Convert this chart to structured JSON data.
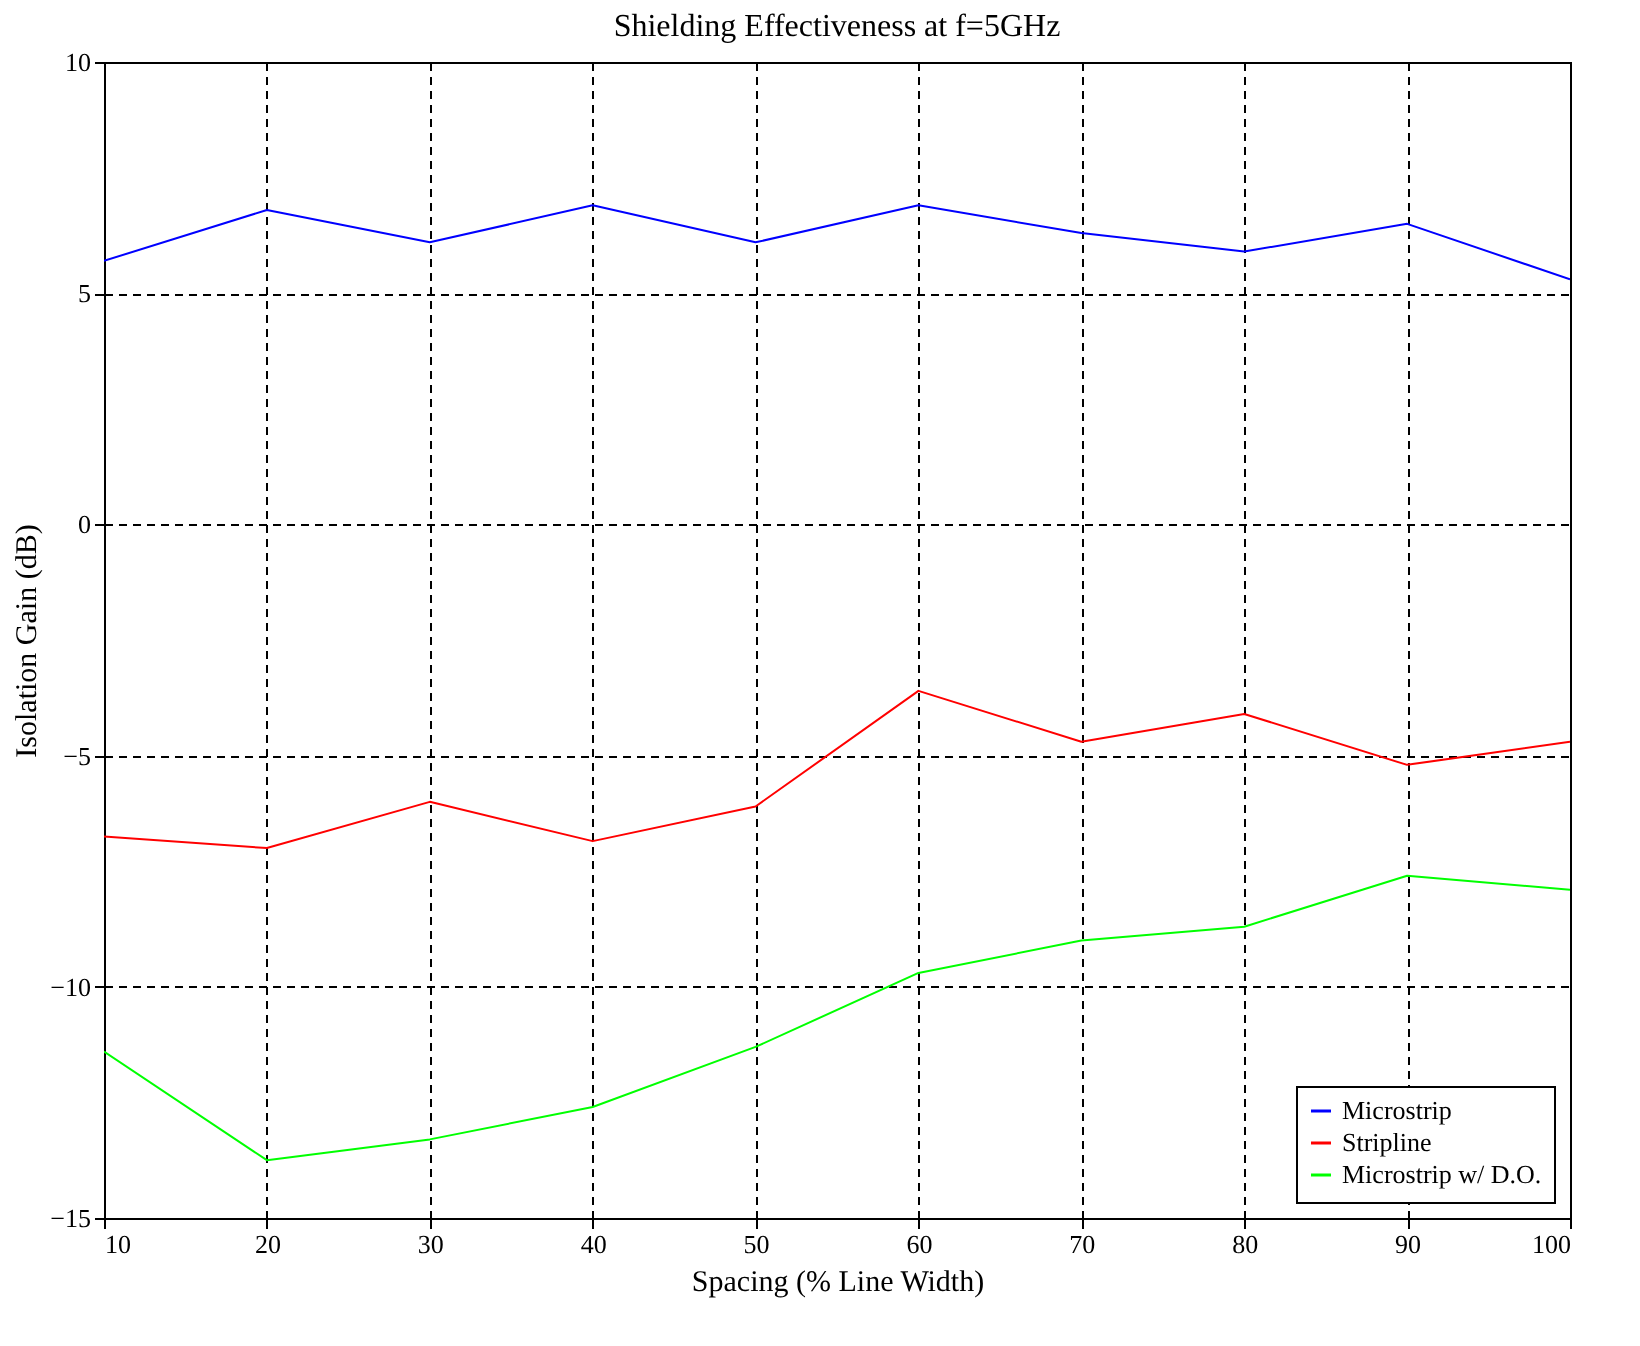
{
  "chart_data": {
    "type": "line",
    "title": "Shielding Effectiveness at f=5GHz",
    "xlabel": "Spacing (% Line Width)",
    "ylabel": "Isolation Gain (dB)",
    "x": [
      10,
      20,
      30,
      40,
      50,
      60,
      70,
      80,
      90,
      100
    ],
    "series": [
      {
        "name": "Microstrip",
        "color": "#0000ff",
        "values": [
          5.7,
          6.8,
          6.1,
          6.9,
          6.1,
          6.9,
          6.3,
          5.9,
          6.5,
          5.3
        ]
      },
      {
        "name": "Stripline",
        "color": "#ff0000",
        "values": [
          -6.75,
          -7.0,
          -6.0,
          -6.85,
          -6.1,
          -3.6,
          -4.7,
          -4.1,
          -5.2,
          -4.7
        ]
      },
      {
        "name": "Microstrip w/ D.O.",
        "color": "#00ff00",
        "values": [
          -11.4,
          -13.75,
          -13.3,
          -12.6,
          -11.3,
          -9.7,
          -9.0,
          -8.7,
          -7.6,
          -7.9
        ]
      }
    ],
    "xlim": [
      10,
      100
    ],
    "xticks": [
      10,
      20,
      30,
      40,
      50,
      60,
      70,
      80,
      90,
      100
    ],
    "ylim": [
      -15,
      10
    ],
    "yticks": [
      -15,
      -10,
      -5,
      0,
      5,
      10
    ],
    "grid": true,
    "legend": "bottom right",
    "marker": "none",
    "line_style": "solid"
  }
}
